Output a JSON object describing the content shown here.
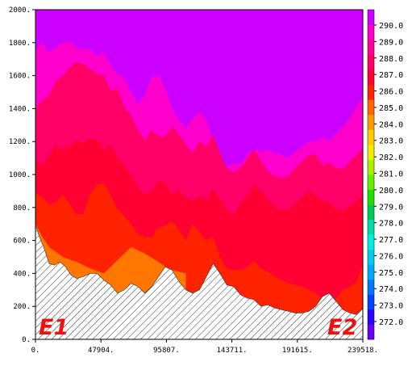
{
  "chart_data": {
    "type": "contour",
    "x_ticks": [
      "0.",
      "47904.",
      "95807.",
      "143711.",
      "191615.",
      "239518."
    ],
    "x_tick_values": [
      0,
      47904,
      95807,
      143711,
      191615,
      239518
    ],
    "y_ticks": [
      "0.",
      "200.",
      "400.",
      "600.",
      "800.",
      "1000.",
      "1200.",
      "1400.",
      "1600.",
      "1800.",
      "2000."
    ],
    "y_tick_values": [
      0,
      200,
      400,
      600,
      800,
      1000,
      1200,
      1400,
      1600,
      1800,
      2000
    ],
    "xlim": [
      0,
      239518
    ],
    "ylim": [
      0,
      2000
    ],
    "end_labels": [
      "E1",
      "E2"
    ],
    "colorbar": {
      "labels": [
        "272.0",
        "273.0",
        "274.0",
        "275.0",
        "276.0",
        "277.0",
        "278.0",
        "279.0",
        "280.0",
        "281.0",
        "282.0",
        "283.0",
        "284.0",
        "285.0",
        "286.0",
        "287.0",
        "288.0",
        "289.0",
        "290.0"
      ],
      "colors": [
        "#6a00ee",
        "#2a00ff",
        "#0044ff",
        "#0077ff",
        "#00aaff",
        "#00ccee",
        "#00eedd",
        "#00ddaa",
        "#00cc55",
        "#22dd00",
        "#66ee00",
        "#aaee00",
        "#eeee00",
        "#ffcc00",
        "#ff9900",
        "#ff6600",
        "#ff2200",
        "#ff0033",
        "#ff0066",
        "#ff0099",
        "#ff00cc",
        "#cc00ff"
      ]
    },
    "layers": [
      {
        "level": "286-287",
        "color": "#ff7700",
        "x": [
          0,
          5000,
          10000,
          20000,
          30000,
          40000,
          50000,
          60000,
          70000,
          80000,
          90000,
          95000,
          100000,
          110000
        ],
        "y": [
          700,
          620,
          560,
          500,
          470,
          430,
          400,
          480,
          560,
          520,
          470,
          440,
          420,
          400
        ]
      },
      {
        "level": "287-288",
        "color": "#ff2200",
        "x": [
          0,
          5000,
          10000,
          15000,
          20000,
          25000,
          30000,
          35000,
          40000,
          45000,
          50000,
          55000,
          60000,
          65000,
          70000,
          75000,
          80000,
          85000,
          90000,
          95000,
          100000,
          105000,
          110000,
          115000,
          120000,
          125000,
          130000,
          135000,
          140000,
          145000,
          150000,
          155000,
          160000,
          165000,
          170000,
          175000,
          180000,
          185000,
          190000,
          195000,
          200000,
          205000,
          210000,
          215000,
          220000,
          225000,
          230000,
          235000,
          239518
        ],
        "y": [
          890,
          860,
          820,
          830,
          880,
          820,
          760,
          760,
          880,
          940,
          950,
          870,
          790,
          750,
          700,
          640,
          620,
          620,
          680,
          690,
          720,
          660,
          600,
          700,
          650,
          600,
          620,
          500,
          430,
          420,
          420,
          440,
          480,
          430,
          410,
          380,
          360,
          340,
          330,
          320,
          300,
          280,
          240,
          220,
          250,
          300,
          320,
          350,
          450
        ]
      },
      {
        "level": "288-289",
        "color": "#ff0033",
        "x": [
          0,
          5000,
          10000,
          15000,
          20000,
          25000,
          30000,
          35000,
          40000,
          45000,
          50000,
          55000,
          60000,
          65000,
          70000,
          75000,
          80000,
          85000,
          90000,
          95000,
          100000,
          105000,
          110000,
          115000,
          120000,
          125000,
          130000,
          135000,
          140000,
          145000,
          150000,
          155000,
          160000,
          165000,
          170000,
          175000,
          180000,
          185000,
          190000,
          195000,
          200000,
          205000,
          210000,
          215000,
          220000,
          225000,
          230000,
          235000,
          239518
        ],
        "y": [
          1090,
          1050,
          1120,
          1180,
          1150,
          1170,
          1210,
          1190,
          1220,
          1210,
          1150,
          1180,
          1100,
          1050,
          1000,
          920,
          880,
          900,
          960,
          950,
          880,
          910,
          860,
          840,
          870,
          850,
          910,
          860,
          780,
          760,
          830,
          870,
          940,
          900,
          850,
          800,
          780,
          790,
          820,
          860,
          900,
          870,
          840,
          830,
          790,
          780,
          810,
          840,
          870
        ]
      },
      {
        "level": "289-290",
        "color": "#ff0066",
        "x": [
          0,
          5000,
          10000,
          15000,
          20000,
          25000,
          30000,
          35000,
          40000,
          45000,
          50000,
          55000,
          60000,
          65000,
          70000,
          75000,
          80000,
          85000,
          90000,
          95000,
          100000,
          105000,
          110000,
          115000,
          120000,
          125000,
          130000,
          135000,
          140000,
          145000,
          150000,
          155000,
          160000,
          165000,
          170000,
          175000,
          180000,
          185000,
          190000,
          195000,
          200000,
          205000,
          210000,
          215000,
          220000,
          225000,
          230000,
          235000,
          239518
        ],
        "y": [
          1400,
          1450,
          1480,
          1570,
          1600,
          1650,
          1680,
          1670,
          1640,
          1610,
          1600,
          1510,
          1520,
          1410,
          1360,
          1270,
          1210,
          1270,
          1230,
          1230,
          1290,
          1240,
          1180,
          1130,
          1200,
          1170,
          1240,
          1130,
          1040,
          1010,
          1040,
          1100,
          1150,
          1080,
          1020,
          990,
          980,
          990,
          1040,
          1080,
          1120,
          1120,
          1060,
          1070,
          1040,
          1030,
          1080,
          1120,
          1160
        ]
      },
      {
        "level": "290-291",
        "color": "#ff00cc",
        "x": [
          0,
          5000,
          10000,
          15000,
          20000,
          25000,
          30000,
          35000,
          40000,
          45000,
          50000,
          55000,
          60000,
          65000,
          70000,
          75000,
          80000,
          85000,
          90000,
          95000,
          100000,
          105000,
          110000,
          115000,
          120000,
          125000,
          130000,
          135000,
          140000,
          145000,
          150000,
          155000,
          160000,
          165000,
          170000,
          175000,
          180000,
          185000,
          190000,
          195000,
          200000,
          205000,
          210000,
          215000,
          220000,
          225000,
          230000,
          235000,
          239518
        ],
        "y": [
          1760,
          1800,
          1740,
          1770,
          1800,
          1810,
          1770,
          1760,
          1760,
          1720,
          1740,
          1660,
          1610,
          1580,
          1500,
          1430,
          1480,
          1590,
          1600,
          1520,
          1400,
          1330,
          1280,
          1340,
          1380,
          1330,
          1200,
          1100,
          1040,
          1070,
          1060,
          1120,
          1150,
          1140,
          1150,
          1130,
          1120,
          1100,
          1140,
          1170,
          1200,
          1200,
          1230,
          1200,
          1250,
          1290,
          1340,
          1410,
          1470
        ]
      }
    ],
    "terrain": {
      "x": [
        0,
        3000,
        6000,
        10000,
        14000,
        18000,
        22000,
        26000,
        30000,
        35000,
        40000,
        45000,
        50000,
        55000,
        60000,
        65000,
        70000,
        75000,
        80000,
        85000,
        90000,
        95000,
        100000,
        105000,
        110000,
        115000,
        120000,
        125000,
        130000,
        135000,
        140000,
        145000,
        150000,
        155000,
        160000,
        165000,
        170000,
        175000,
        180000,
        185000,
        190000,
        195000,
        200000,
        205000,
        210000,
        215000,
        220000,
        225000,
        230000,
        235000,
        239518
      ],
      "y": [
        690,
        620,
        560,
        460,
        450,
        470,
        440,
        390,
        370,
        380,
        400,
        400,
        360,
        330,
        280,
        300,
        340,
        320,
        280,
        320,
        380,
        440,
        420,
        350,
        300,
        280,
        300,
        380,
        460,
        400,
        330,
        320,
        270,
        250,
        240,
        200,
        210,
        190,
        180,
        170,
        160,
        160,
        170,
        200,
        260,
        280,
        230,
        180,
        160,
        150,
        190
      ]
    }
  }
}
